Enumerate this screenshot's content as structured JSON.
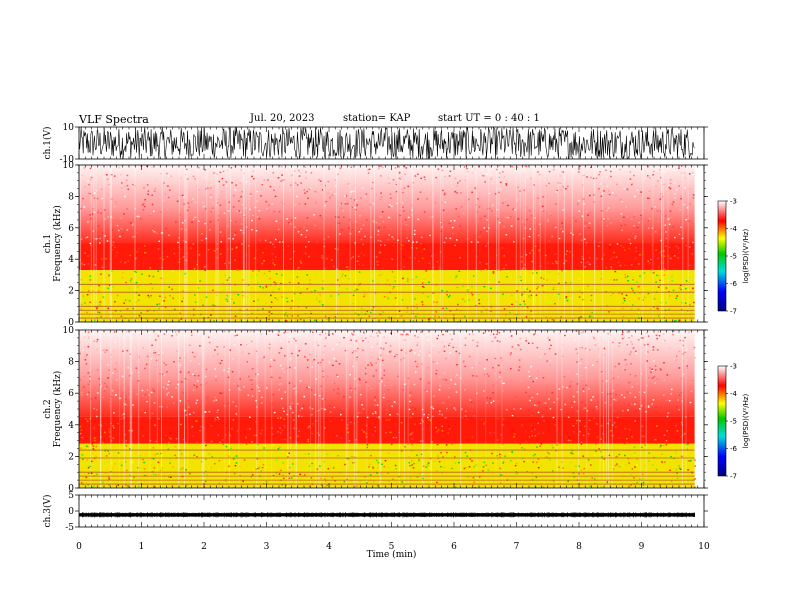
{
  "header": {
    "title": "VLF Spectra",
    "date": "Jul. 20, 2023",
    "station": "station= KAP",
    "start": "start  UT =   0 : 40 : 1"
  },
  "chart_data": [
    {
      "type": "line",
      "name": "ch1-waveform",
      "ylabel": "ch.1(V)",
      "ylim": [
        -10,
        10
      ],
      "yticks": [
        "10",
        "-10"
      ],
      "xlim": [
        0,
        10
      ]
    },
    {
      "type": "heatmap",
      "name": "ch1-spectrogram",
      "ylabel": "ch.1\nFrequency (kHz)",
      "ylabel_lines": [
        "ch.1",
        "Frequency (kHz)"
      ],
      "ylim": [
        0,
        10
      ],
      "yticks": [
        "0",
        "2",
        "4",
        "6",
        "8",
        "10"
      ],
      "xlim": [
        0,
        10
      ],
      "data_end_min": 9.85,
      "band_top_khz": 3.3,
      "red_top_khz": 5.0,
      "colorbar": {
        "label": "log(PSD)(V²/Hz)",
        "range": [
          -7,
          -3
        ],
        "ticks": [
          "-3",
          "-4",
          "-5",
          "-6",
          "-7"
        ]
      }
    },
    {
      "type": "heatmap",
      "name": "ch2-spectrogram",
      "ylabel": "ch.2\nFrequency (kHz)",
      "ylabel_lines": [
        "ch.2",
        "Frequency (kHz)"
      ],
      "ylim": [
        0,
        10
      ],
      "yticks": [
        "0",
        "2",
        "4",
        "6",
        "8",
        "10"
      ],
      "xlim": [
        0,
        10
      ],
      "data_end_min": 9.85,
      "band_top_khz": 2.8,
      "red_top_khz": 4.5,
      "colorbar": {
        "label": "log(PSD)(V²/Hz)",
        "range": [
          -7,
          -3
        ],
        "ticks": [
          "-3",
          "-4",
          "-5",
          "-6",
          "-7"
        ]
      }
    },
    {
      "type": "line",
      "name": "ch3-waveform",
      "ylabel": "ch.3(V)",
      "ylim": [
        -5,
        5
      ],
      "yticks": [
        "5",
        "0",
        "-5"
      ],
      "xlim": [
        0,
        10
      ],
      "baseline_v": -1.2
    }
  ],
  "xaxis": {
    "label": "Time (min)",
    "ticks": [
      "0",
      "1",
      "2",
      "3",
      "4",
      "5",
      "6",
      "7",
      "8",
      "9",
      "10"
    ]
  }
}
